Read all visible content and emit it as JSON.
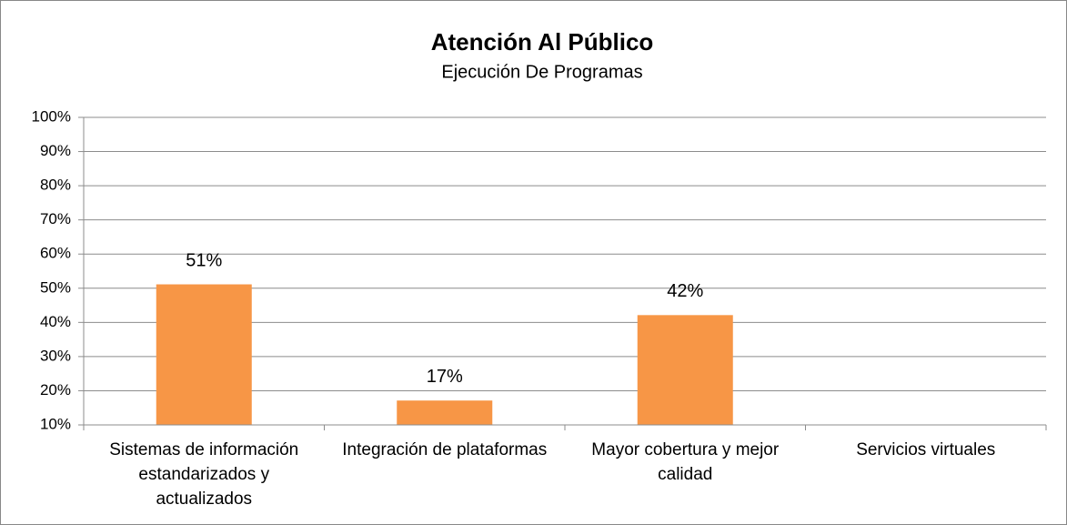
{
  "chart_data": {
    "type": "bar",
    "title": "Atención Al Público",
    "subtitle": "Ejecución De Programas",
    "categories": [
      "Sistemas de información estandarizados y actualizados",
      "Integración de plataformas",
      "Mayor cobertura y mejor calidad",
      "Servicios virtuales"
    ],
    "values": [
      51,
      17,
      42,
      10
    ],
    "value_labels": [
      "51%",
      "17%",
      "42%",
      null
    ],
    "color": "#f79646",
    "ylim": [
      10,
      100
    ],
    "yticks": [
      {
        "value": 10,
        "label": "10%"
      },
      {
        "value": 20,
        "label": "20%"
      },
      {
        "value": 30,
        "label": "30%"
      },
      {
        "value": 40,
        "label": "40%"
      },
      {
        "value": 50,
        "label": "50%"
      },
      {
        "value": 60,
        "label": "60%"
      },
      {
        "value": 70,
        "label": "70%"
      },
      {
        "value": 80,
        "label": "80%"
      },
      {
        "value": 90,
        "label": "90%"
      },
      {
        "value": 100,
        "label": "100%"
      }
    ],
    "grid": true
  }
}
